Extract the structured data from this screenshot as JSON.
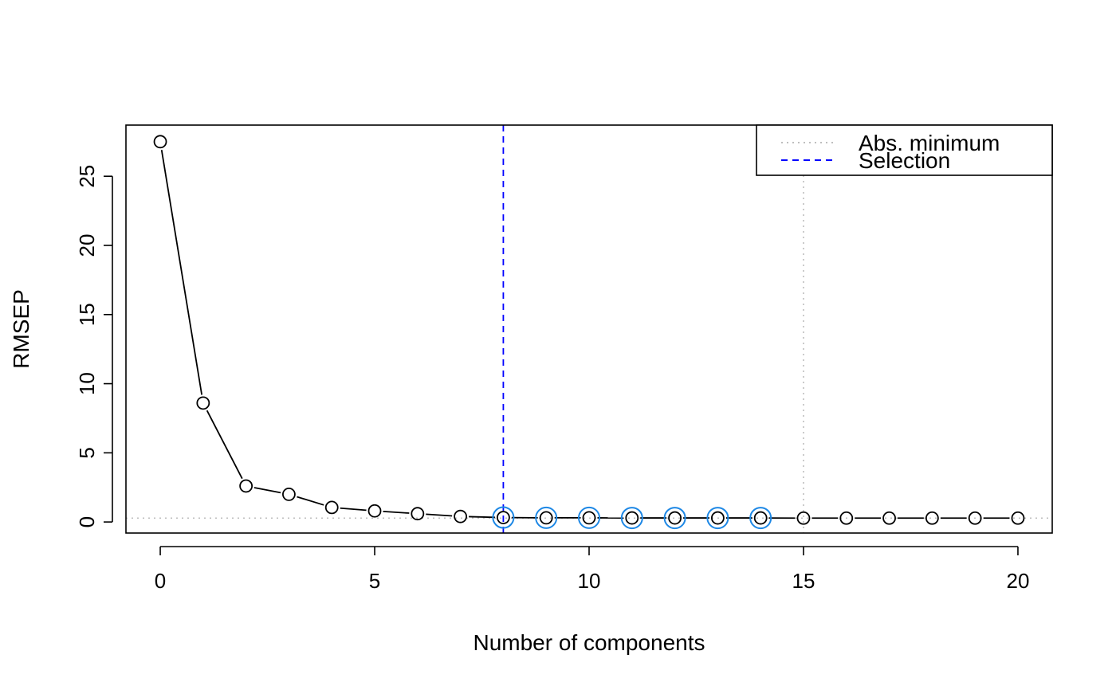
{
  "chart_data": {
    "type": "line",
    "title": "",
    "xlabel": "Number of components",
    "ylabel": "RMSEP",
    "xlim": [
      -0.8,
      20.8
    ],
    "ylim": [
      -0.8,
      28.7
    ],
    "xticks": [
      0,
      5,
      10,
      15,
      20
    ],
    "yticks": [
      0,
      5,
      10,
      15,
      20,
      25
    ],
    "grid": false,
    "series": [
      {
        "x": [
          0,
          1,
          2,
          3,
          4,
          5,
          6,
          7,
          8,
          9,
          10,
          11,
          12,
          13,
          14,
          15,
          16,
          17,
          18,
          19,
          20
        ],
        "y": [
          27.5,
          8.6,
          2.6,
          2.0,
          1.05,
          0.8,
          0.6,
          0.4,
          0.32,
          0.3,
          0.3,
          0.29,
          0.29,
          0.29,
          0.29,
          0.28,
          0.28,
          0.28,
          0.28,
          0.28,
          0.28
        ],
        "color": "#000000"
      }
    ],
    "highlighted_points": [
      8,
      9,
      10,
      11,
      12,
      13,
      14
    ],
    "highlight_color": "#1E88E5",
    "abs_minimum": {
      "x": 15,
      "y": 0.28,
      "color": "#BEBEBE"
    },
    "selection": {
      "x": 8,
      "color": "#0000FF"
    },
    "legend": {
      "position": "top-right",
      "entries": [
        {
          "label": "Abs. minimum",
          "style": "dotted",
          "color": "#BEBEBE"
        },
        {
          "label": "Selection",
          "style": "dashed",
          "color": "#0000FF"
        }
      ]
    }
  }
}
